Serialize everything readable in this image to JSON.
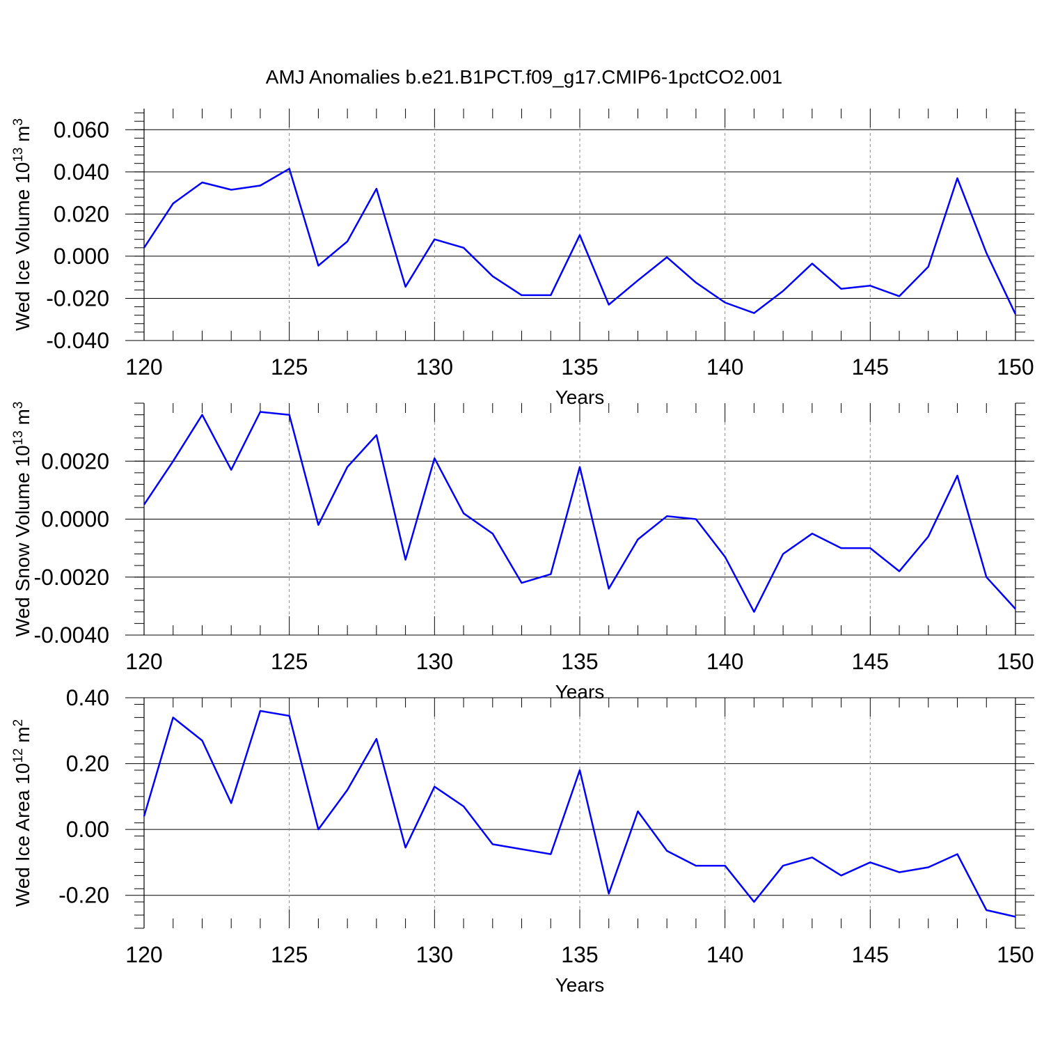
{
  "title": "AMJ Anomalies b.e21.B1PCT.f09_g17.CMIP6-1pctCO2.001",
  "line_color": "#0000ff",
  "chart_data": [
    {
      "type": "line",
      "xlabel": "Years",
      "ylabel": "Wed Ice Volume 10",
      "ylabel_exp": "13",
      "ylabel_unit": " m",
      "ylabel_unit_exp": "3",
      "xlim": [
        120,
        150
      ],
      "ylim": [
        -0.04,
        0.07
      ],
      "xticks": [
        120,
        125,
        130,
        135,
        140,
        145,
        150
      ],
      "yticks": [
        -0.04,
        -0.02,
        0.0,
        0.02,
        0.04,
        0.06
      ],
      "ytick_labels": [
        "-0.040",
        "-0.020",
        "0.000",
        "0.020",
        "0.040",
        "0.060"
      ],
      "x": [
        120,
        121,
        122,
        123,
        124,
        125,
        126,
        127,
        128,
        129,
        130,
        131,
        132,
        133,
        134,
        135,
        136,
        137,
        138,
        139,
        140,
        141,
        142,
        143,
        144,
        145,
        146,
        147,
        148,
        149,
        150
      ],
      "values": [
        0.004,
        0.025,
        0.035,
        0.0315,
        0.0335,
        0.0415,
        -0.0045,
        0.007,
        0.032,
        -0.0145,
        0.008,
        0.004,
        -0.0095,
        -0.0185,
        -0.0185,
        0.01,
        -0.023,
        -0.0115,
        -0.0005,
        -0.0125,
        -0.022,
        -0.027,
        -0.0165,
        -0.0035,
        -0.0155,
        -0.014,
        -0.019,
        -0.005,
        0.037,
        0.0015,
        -0.0275
      ]
    },
    {
      "type": "line",
      "xlabel": "Years",
      "ylabel": "Wed Snow Volume 10",
      "ylabel_exp": "13",
      "ylabel_unit": " m",
      "ylabel_unit_exp": "3",
      "xlim": [
        120,
        150
      ],
      "ylim": [
        -0.004,
        0.004
      ],
      "xticks": [
        120,
        125,
        130,
        135,
        140,
        145,
        150
      ],
      "yticks": [
        -0.004,
        -0.002,
        0.0,
        0.002
      ],
      "ytick_labels": [
        "-0.0040",
        "-0.0020",
        "0.0000",
        "0.0020"
      ],
      "x": [
        120,
        121,
        122,
        123,
        124,
        125,
        126,
        127,
        128,
        129,
        130,
        131,
        132,
        133,
        134,
        135,
        136,
        137,
        138,
        139,
        140,
        141,
        142,
        143,
        144,
        145,
        146,
        147,
        148,
        149,
        150
      ],
      "values": [
        0.0005,
        0.002,
        0.0036,
        0.0017,
        0.0037,
        0.0036,
        -0.0002,
        0.0018,
        0.0029,
        -0.0014,
        0.0021,
        0.0002,
        -0.0005,
        -0.0022,
        -0.0019,
        0.0018,
        -0.0024,
        -0.0007,
        0.0001,
        0.0,
        -0.0013,
        -0.0032,
        -0.0012,
        -0.0005,
        -0.001,
        -0.001,
        -0.0018,
        -0.0006,
        0.0015,
        -0.002,
        -0.0031
      ]
    },
    {
      "type": "line",
      "xlabel": "Years",
      "ylabel": "Wed Ice Area 10",
      "ylabel_exp": "12",
      "ylabel_unit": " m",
      "ylabel_unit_exp": "2",
      "xlim": [
        120,
        150
      ],
      "ylim": [
        -0.3,
        0.4
      ],
      "xticks": [
        120,
        125,
        130,
        135,
        140,
        145,
        150
      ],
      "yticks": [
        -0.2,
        0.0,
        0.2,
        0.4
      ],
      "ytick_labels": [
        "-0.20",
        "0.00",
        "0.20",
        "0.40"
      ],
      "x": [
        120,
        121,
        122,
        123,
        124,
        125,
        126,
        127,
        128,
        129,
        130,
        131,
        132,
        133,
        134,
        135,
        136,
        137,
        138,
        139,
        140,
        141,
        142,
        143,
        144,
        145,
        146,
        147,
        148,
        149,
        150
      ],
      "values": [
        0.04,
        0.34,
        0.27,
        0.08,
        0.36,
        0.345,
        0.0,
        0.12,
        0.275,
        -0.055,
        0.13,
        0.07,
        -0.045,
        -0.06,
        -0.075,
        0.18,
        -0.195,
        0.055,
        -0.065,
        -0.11,
        -0.11,
        -0.22,
        -0.11,
        -0.085,
        -0.14,
        -0.1,
        -0.13,
        -0.115,
        -0.075,
        -0.245,
        -0.265
      ]
    }
  ]
}
